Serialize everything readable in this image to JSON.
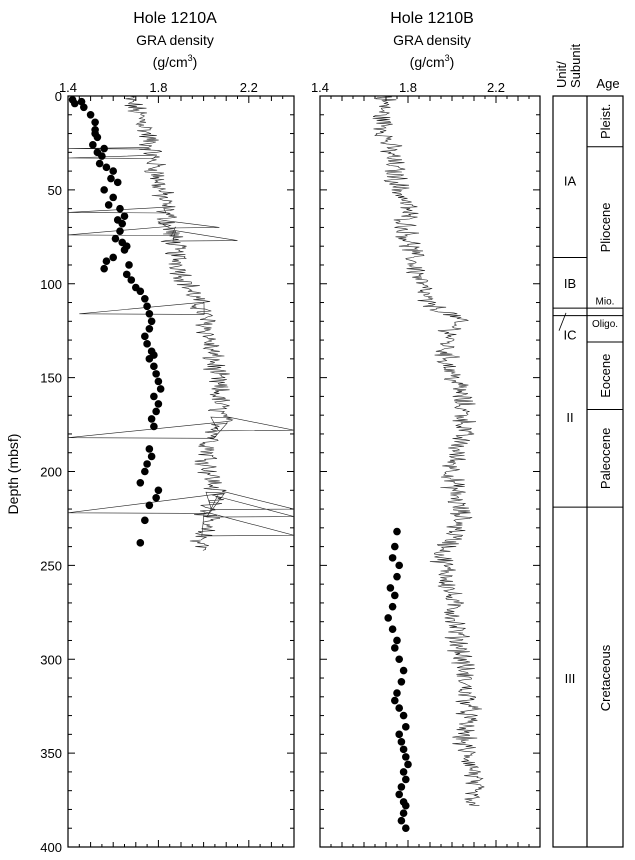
{
  "chart_data": [
    {
      "type": "scatter",
      "hole": "Hole 1210A",
      "xlabel_line1": "GRA density",
      "xlabel_unit": "(g/cm",
      "xlabel_sup": "3",
      "xlabel_close": ")",
      "ylabel": "Depth (mbsf)",
      "xlim": [
        1.4,
        2.4
      ],
      "ylim": [
        0,
        400
      ],
      "y_inverted": true,
      "xticks": [
        "1.4",
        "1.8",
        "2.2"
      ],
      "yticks": [
        "0",
        "50",
        "100",
        "150",
        "200",
        "250",
        "300",
        "350",
        "400"
      ],
      "series": [
        {
          "style": "line",
          "trend_depth": [
            0,
            15,
            30,
            45,
            55,
            65,
            75,
            85,
            95,
            105,
            115,
            125,
            135,
            145,
            155,
            165,
            175,
            185,
            195,
            205,
            215,
            225,
            235,
            242
          ],
          "trend_density": [
            1.66,
            1.74,
            1.77,
            1.8,
            1.82,
            1.84,
            1.86,
            1.88,
            1.91,
            1.95,
            2.0,
            2.02,
            2.03,
            2.05,
            2.06,
            2.07,
            2.08,
            2.03,
            2.02,
            2.04,
            2.06,
            2.01,
            1.99,
            2.0
          ],
          "spikes": [
            [
              28,
              1.4
            ],
            [
              33,
              1.4
            ],
            [
              62,
              1.4
            ],
            [
              70,
              2.07
            ],
            [
              74,
              1.4
            ],
            [
              77,
              2.15
            ],
            [
              116,
              1.45
            ],
            [
              178,
              2.4
            ],
            [
              182,
              1.4
            ],
            [
              220,
              2.4
            ],
            [
              222,
              1.4
            ],
            [
              224,
              2.4
            ],
            [
              234,
              2.4
            ]
          ]
        },
        {
          "style": "points",
          "x": [
            1.42,
            1.43,
            1.46,
            1.47,
            1.5,
            1.52,
            1.52,
            1.53,
            1.51,
            1.52,
            1.53,
            1.56,
            1.55,
            1.54,
            1.57,
            1.6,
            1.59,
            1.62,
            1.56,
            1.6,
            1.58,
            1.63,
            1.65,
            1.62,
            1.64,
            1.63,
            1.61,
            1.64,
            1.66,
            1.65,
            1.6,
            1.57,
            1.56,
            1.67,
            1.66,
            1.68,
            1.7,
            1.72,
            1.74,
            1.75,
            1.76,
            1.77,
            1.76,
            1.74,
            1.75,
            1.77,
            1.78,
            1.76,
            1.78,
            1.79,
            1.8,
            1.81,
            1.78,
            1.8,
            1.79,
            1.77,
            1.78,
            1.76,
            1.77,
            1.75,
            1.74,
            1.72,
            1.8,
            1.79,
            1.76,
            1.74,
            1.72
          ],
          "y": [
            2,
            4,
            3,
            6,
            10,
            14,
            18,
            22,
            26,
            20,
            30,
            28,
            32,
            36,
            38,
            40,
            44,
            46,
            50,
            54,
            58,
            60,
            64,
            66,
            68,
            72,
            76,
            78,
            80,
            82,
            86,
            88,
            92,
            90,
            95,
            98,
            102,
            104,
            108,
            112,
            116,
            120,
            124,
            128,
            132,
            136,
            138,
            140,
            144,
            148,
            152,
            156,
            160,
            164,
            168,
            172,
            176,
            188,
            192,
            196,
            200,
            206,
            210,
            214,
            218,
            226,
            238
          ]
        }
      ]
    },
    {
      "type": "scatter",
      "hole": "Hole 1210B",
      "xlabel_line1": "GRA density",
      "xlabel_unit": "(g/cm",
      "xlabel_sup": "3",
      "xlabel_close": ")",
      "xlim": [
        1.4,
        2.4
      ],
      "ylim": [
        0,
        400
      ],
      "y_inverted": true,
      "xticks": [
        "1.4",
        "1.8",
        "2.2"
      ],
      "series": [
        {
          "style": "line",
          "trend_depth": [
            0,
            10,
            20,
            30,
            40,
            50,
            60,
            70,
            80,
            90,
            100,
            110,
            118,
            125,
            135,
            145,
            155,
            165,
            175,
            185,
            195,
            205,
            215,
            225,
            235,
            245,
            255,
            265,
            275,
            285,
            295,
            305,
            315,
            325,
            335,
            345,
            360,
            370,
            378
          ],
          "trend_density": [
            1.7,
            1.68,
            1.7,
            1.72,
            1.74,
            1.76,
            1.8,
            1.79,
            1.81,
            1.83,
            1.86,
            1.88,
            2.02,
            2.0,
            1.97,
            1.99,
            2.03,
            2.05,
            2.06,
            2.03,
            2.01,
            2.0,
            2.02,
            2.04,
            2.01,
            1.95,
            1.98,
            1.99,
            2.01,
            2.02,
            2.04,
            2.05,
            2.06,
            2.08,
            2.06,
            2.05,
            2.1,
            2.09,
            2.08
          ]
        },
        {
          "style": "points",
          "x": [
            1.75,
            1.74,
            1.73,
            1.76,
            1.75,
            1.72,
            1.74,
            1.73,
            1.71,
            1.73,
            1.75,
            1.74,
            1.76,
            1.78,
            1.77,
            1.75,
            1.74,
            1.76,
            1.78,
            1.79,
            1.76,
            1.77,
            1.78,
            1.79,
            1.8,
            1.78,
            1.79,
            1.77,
            1.76,
            1.78,
            1.79,
            1.78,
            1.77,
            1.79
          ],
          "y": [
            232,
            240,
            246,
            250,
            256,
            262,
            266,
            272,
            278,
            284,
            290,
            294,
            300,
            306,
            312,
            318,
            322,
            326,
            330,
            336,
            340,
            344,
            348,
            352,
            356,
            360,
            364,
            368,
            372,
            376,
            378,
            382,
            386,
            390
          ]
        }
      ]
    },
    {
      "type": "table",
      "col_unit_line1": "Unit/",
      "col_unit_line2": "Subunit",
      "col_age": "Age",
      "units": [
        {
          "label": "IA",
          "top": 0,
          "bottom": 86
        },
        {
          "label": "IB",
          "top": 86,
          "bottom": 113
        },
        {
          "label": "IC",
          "top": 113,
          "bottom": 117
        },
        {
          "label": "II",
          "top": 117,
          "bottom": 219
        },
        {
          "label": "III",
          "top": 219,
          "bottom": 400
        }
      ],
      "ages": [
        {
          "label": "Pleist.",
          "top": 0,
          "bottom": 27
        },
        {
          "label": "Pliocene",
          "top": 27,
          "bottom": 113
        },
        {
          "label": "Mio.",
          "top": 113,
          "bottom": 117
        },
        {
          "label": "Oligo.",
          "top": 117,
          "bottom": 131
        },
        {
          "label": "Eocene",
          "top": 131,
          "bottom": 167
        },
        {
          "label": "Paleocene",
          "top": 167,
          "bottom": 219
        },
        {
          "label": "Cretaceous",
          "top": 219,
          "bottom": 400
        }
      ]
    }
  ]
}
